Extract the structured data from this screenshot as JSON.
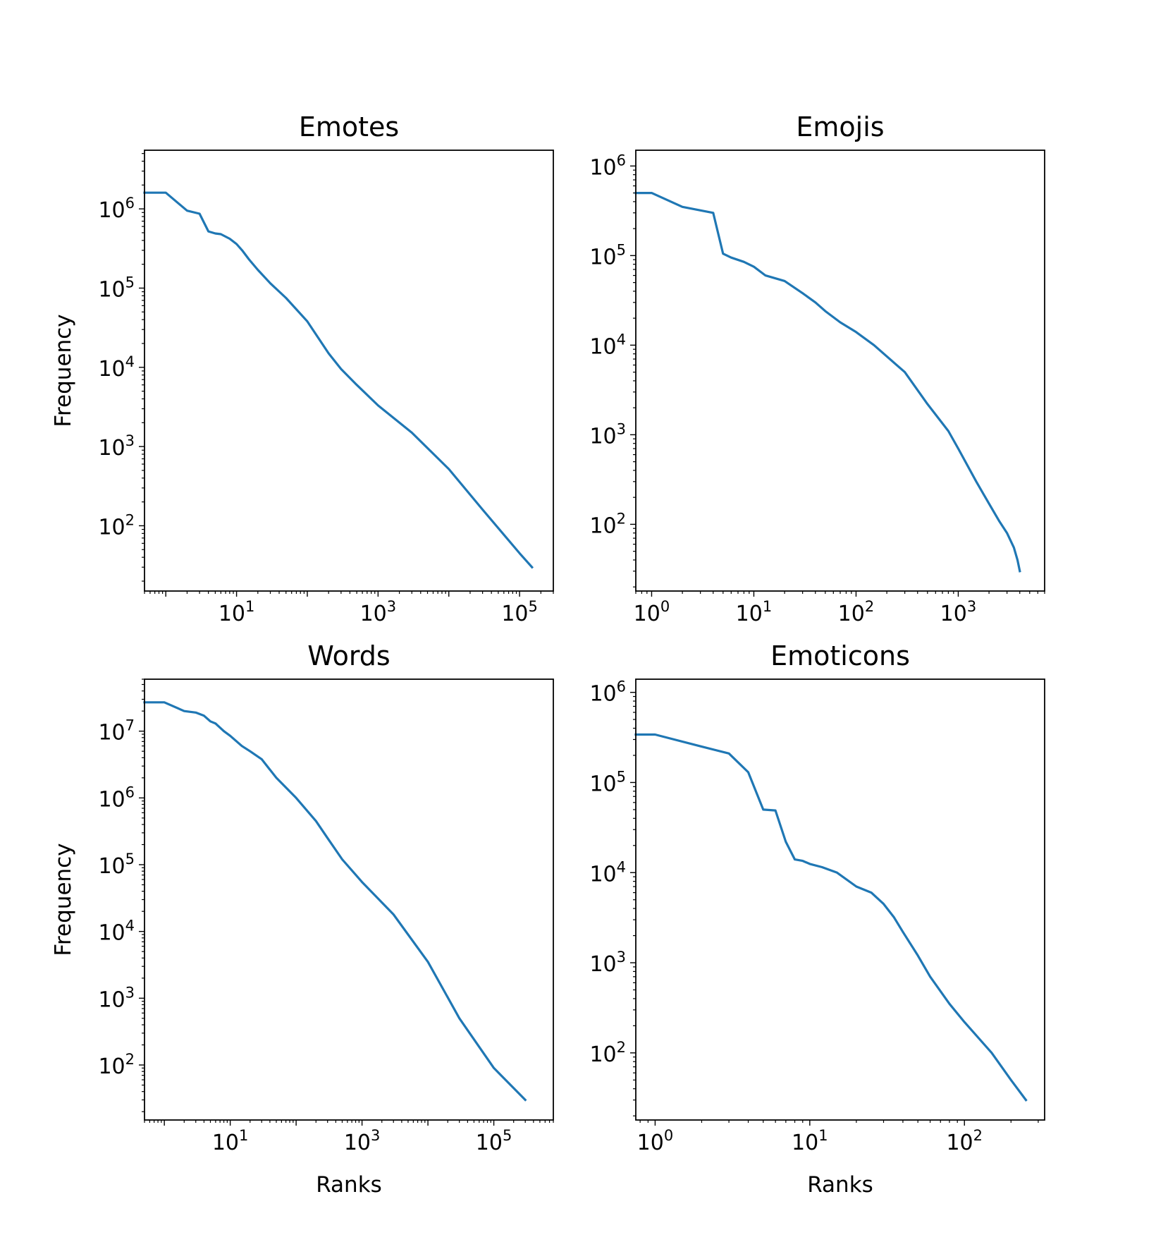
{
  "chart_data": [
    {
      "id": "emotes",
      "type": "line",
      "title": "Emotes",
      "xlabel": "",
      "ylabel": "Frequency",
      "xscale": "log",
      "yscale": "log",
      "xlim": [
        0.5,
        300000
      ],
      "ylim": [
        15,
        5500000
      ],
      "xticks": [
        {
          "value": 10,
          "base": "10",
          "exp": "1"
        },
        {
          "value": 1000,
          "base": "10",
          "exp": "3"
        },
        {
          "value": 100000,
          "base": "10",
          "exp": "5"
        }
      ],
      "yticks": [
        {
          "value": 100,
          "base": "10",
          "exp": "2"
        },
        {
          "value": 1000,
          "base": "10",
          "exp": "3"
        },
        {
          "value": 10000,
          "base": "10",
          "exp": "4"
        },
        {
          "value": 100000,
          "base": "10",
          "exp": "5"
        },
        {
          "value": 1000000,
          "base": "10",
          "exp": "6"
        }
      ],
      "color": "#1f77b4",
      "grid": false,
      "series": [
        {
          "x": [
            0.5,
            1,
            2,
            3,
            4,
            5,
            6,
            8,
            10,
            12,
            15,
            20,
            30,
            50,
            100,
            200,
            300,
            500,
            1000,
            3000,
            10000,
            30000,
            100000,
            150000
          ],
          "y": [
            1600000,
            1600000,
            950000,
            870000,
            520000,
            490000,
            480000,
            420000,
            360000,
            300000,
            230000,
            170000,
            115000,
            75000,
            38000,
            15000,
            9500,
            6000,
            3300,
            1500,
            520,
            160,
            45,
            30
          ]
        }
      ]
    },
    {
      "id": "emojis",
      "type": "line",
      "title": "Emojis",
      "xlabel": "",
      "ylabel": "",
      "xscale": "log",
      "yscale": "log",
      "xlim": [
        0.7,
        7000
      ],
      "ylim": [
        18,
        1500000
      ],
      "xticks": [
        {
          "value": 1,
          "base": "10",
          "exp": "0"
        },
        {
          "value": 10,
          "base": "10",
          "exp": "1"
        },
        {
          "value": 100,
          "base": "10",
          "exp": "2"
        },
        {
          "value": 1000,
          "base": "10",
          "exp": "3"
        }
      ],
      "yticks": [
        {
          "value": 100,
          "base": "10",
          "exp": "2"
        },
        {
          "value": 1000,
          "base": "10",
          "exp": "3"
        },
        {
          "value": 10000,
          "base": "10",
          "exp": "4"
        },
        {
          "value": 100000,
          "base": "10",
          "exp": "5"
        },
        {
          "value": 1000000,
          "base": "10",
          "exp": "6"
        }
      ],
      "color": "#1f77b4",
      "grid": false,
      "series": [
        {
          "x": [
            0.7,
            1,
            2,
            4,
            5,
            6,
            8,
            10,
            13,
            20,
            30,
            40,
            50,
            70,
            100,
            150,
            200,
            300,
            500,
            800,
            1000,
            1500,
            2000,
            2500,
            3000,
            3500,
            3800,
            4000
          ],
          "y": [
            500000,
            500000,
            350000,
            300000,
            105000,
            95000,
            85000,
            75000,
            60000,
            52000,
            38000,
            30000,
            24000,
            18000,
            14000,
            10000,
            7500,
            5000,
            2200,
            1100,
            700,
            300,
            170,
            110,
            80,
            55,
            40,
            30
          ]
        }
      ]
    },
    {
      "id": "words",
      "type": "line",
      "title": "Words",
      "xlabel": "Ranks",
      "ylabel": "Frequency",
      "xscale": "log",
      "yscale": "log",
      "xlim": [
        0.5,
        800000
      ],
      "ylim": [
        15,
        60000000
      ],
      "xticks": [
        {
          "value": 10,
          "base": "10",
          "exp": "1"
        },
        {
          "value": 1000,
          "base": "10",
          "exp": "3"
        },
        {
          "value": 100000,
          "base": "10",
          "exp": "5"
        }
      ],
      "yticks": [
        {
          "value": 100,
          "base": "10",
          "exp": "2"
        },
        {
          "value": 1000,
          "base": "10",
          "exp": "3"
        },
        {
          "value": 10000,
          "base": "10",
          "exp": "4"
        },
        {
          "value": 100000,
          "base": "10",
          "exp": "5"
        },
        {
          "value": 1000000,
          "base": "10",
          "exp": "6"
        },
        {
          "value": 10000000,
          "base": "10",
          "exp": "7"
        }
      ],
      "color": "#1f77b4",
      "grid": false,
      "series": [
        {
          "x": [
            0.5,
            1,
            2,
            3,
            4,
            5,
            6,
            8,
            10,
            15,
            20,
            30,
            50,
            100,
            200,
            300,
            500,
            1000,
            3000,
            10000,
            30000,
            100000,
            300000
          ],
          "y": [
            27000000,
            27000000,
            20000000,
            19000000,
            17000000,
            14000000,
            13000000,
            10000000,
            8500000,
            6000000,
            5000000,
            3800000,
            2000000,
            1000000,
            450000,
            250000,
            120000,
            55000,
            18000,
            3500,
            500,
            90,
            30
          ]
        }
      ]
    },
    {
      "id": "emoticons",
      "type": "line",
      "title": "Emoticons",
      "xlabel": "Ranks",
      "ylabel": "",
      "xscale": "log",
      "yscale": "log",
      "xlim": [
        0.75,
        330
      ],
      "ylim": [
        18,
        1400000
      ],
      "xticks": [
        {
          "value": 1,
          "base": "10",
          "exp": "0"
        },
        {
          "value": 10,
          "base": "10",
          "exp": "1"
        },
        {
          "value": 100,
          "base": "10",
          "exp": "2"
        }
      ],
      "yticks": [
        {
          "value": 100,
          "base": "10",
          "exp": "2"
        },
        {
          "value": 1000,
          "base": "10",
          "exp": "3"
        },
        {
          "value": 10000,
          "base": "10",
          "exp": "4"
        },
        {
          "value": 100000,
          "base": "10",
          "exp": "5"
        },
        {
          "value": 1000000,
          "base": "10",
          "exp": "6"
        }
      ],
      "color": "#1f77b4",
      "grid": false,
      "series": [
        {
          "x": [
            0.75,
            1,
            2,
            3,
            4,
            5,
            6,
            7,
            8,
            9,
            10,
            12,
            15,
            20,
            25,
            30,
            35,
            40,
            50,
            60,
            80,
            100,
            150,
            200,
            250
          ],
          "y": [
            340000,
            340000,
            250000,
            210000,
            130000,
            50000,
            49000,
            22000,
            14000,
            13500,
            12500,
            11500,
            10000,
            7000,
            6000,
            4500,
            3200,
            2200,
            1200,
            700,
            350,
            220,
            100,
            50,
            30
          ]
        }
      ]
    }
  ]
}
